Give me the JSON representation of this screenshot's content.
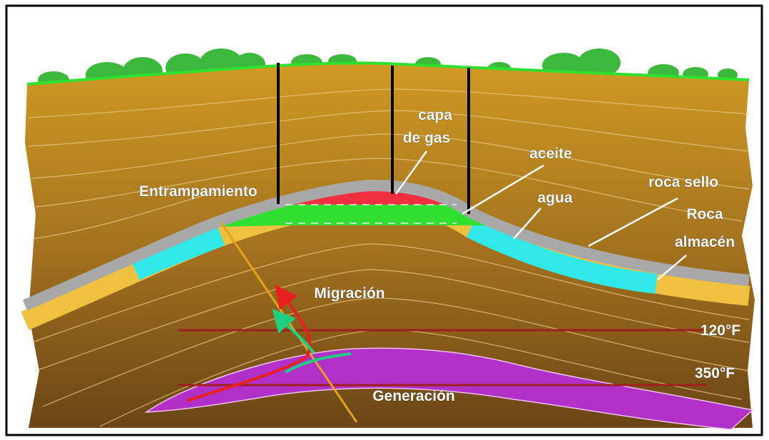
{
  "labels": {
    "gas_cap": [
      "capa",
      "de gas"
    ],
    "oil": "aceite",
    "trap": "Entrampamiento",
    "water": "agua",
    "seal_rock": "roca sello",
    "reservoir_rock": [
      "Roca",
      "almacén"
    ],
    "migration": "Migración",
    "isotherm_120": "120°F",
    "isotherm_350": "350°F",
    "generation": "Generación"
  }
}
